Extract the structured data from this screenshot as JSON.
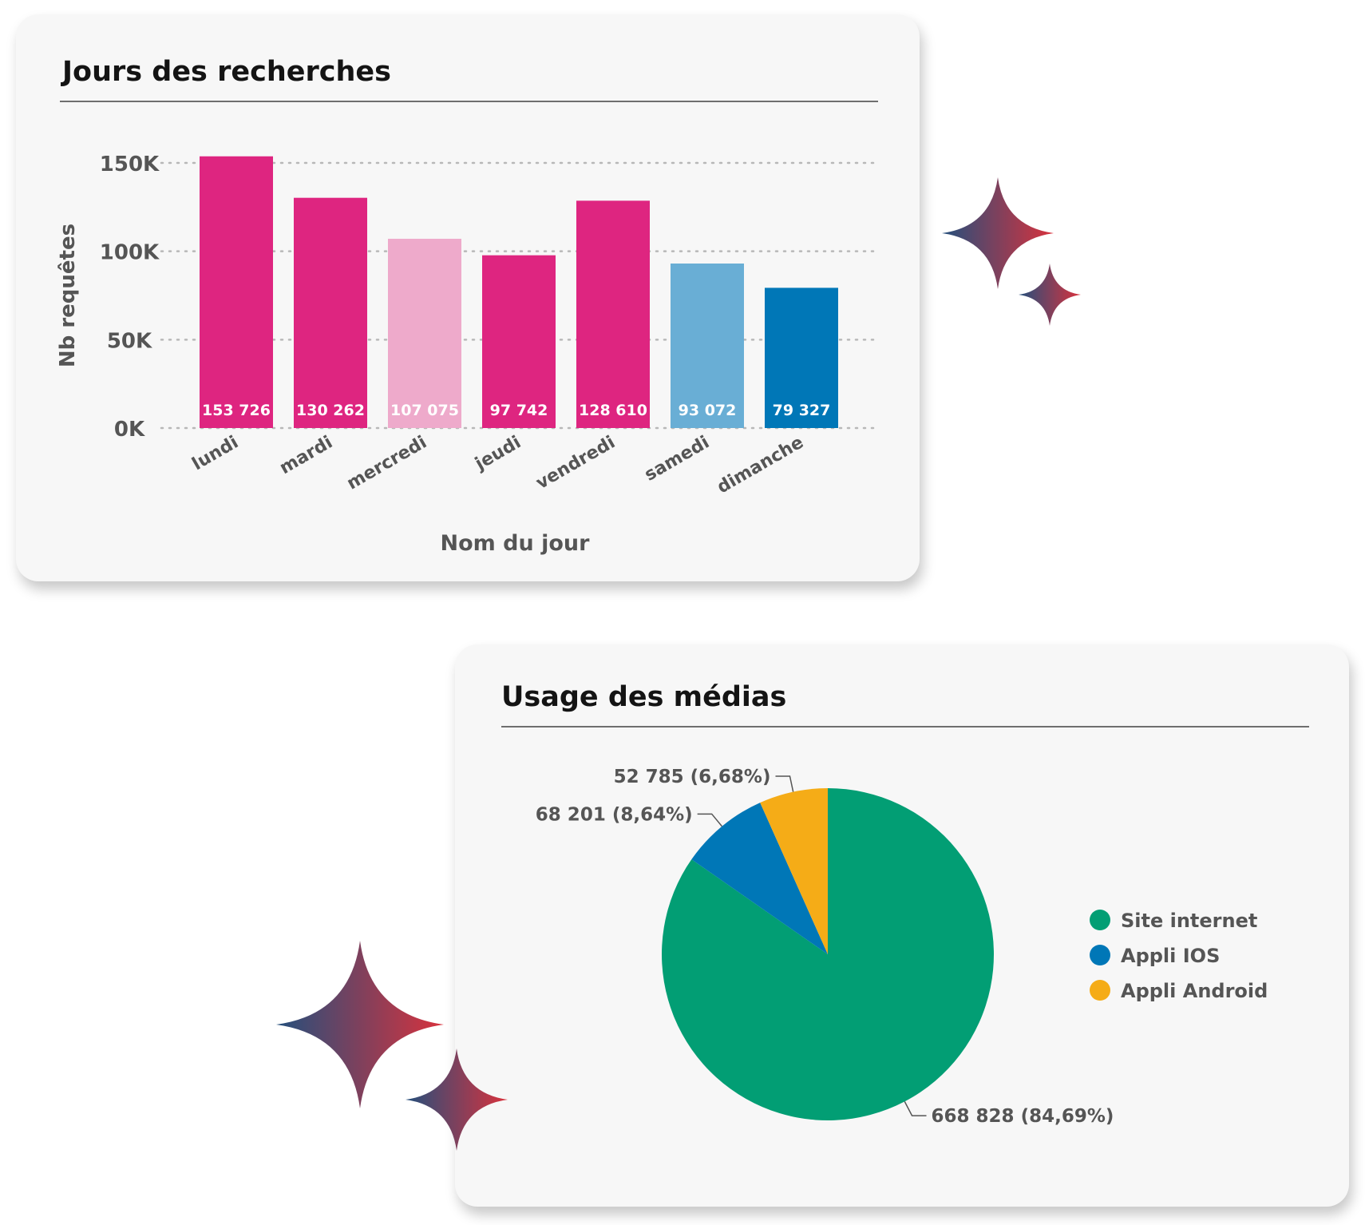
{
  "bar_card": {
    "title": "Jours des recherches"
  },
  "pie_card": {
    "title": "Usage des médias"
  },
  "colors": {
    "magenta": "#de2580",
    "light_pink": "#eeaacb",
    "light_blue": "#69aed5",
    "blue": "#0077b7",
    "green": "#029e74",
    "yellow": "#f5ac17",
    "sparkle_left": "#244f7c",
    "sparkle_right": "#d9323d"
  },
  "chart_data": [
    {
      "type": "bar",
      "title": "Jours des recherches",
      "xlabel": "Nom du jour",
      "ylabel": "Nb requêtes",
      "ylim": [
        0,
        150000
      ],
      "yticks": [
        {
          "value": 0,
          "label": "0K"
        },
        {
          "value": 50000,
          "label": "50K"
        },
        {
          "value": 100000,
          "label": "100K"
        },
        {
          "value": 150000,
          "label": "150K"
        }
      ],
      "grid": true,
      "categories": [
        "lundi",
        "mardi",
        "mercredi",
        "jeudi",
        "vendredi",
        "samedi",
        "dimanche"
      ],
      "values": [
        153726,
        130262,
        107075,
        97742,
        128610,
        93072,
        79327
      ],
      "value_labels": [
        "153 726",
        "130 262",
        "107 075",
        "97 742",
        "128 610",
        "93 072",
        "79 327"
      ],
      "bar_colors": [
        "#de2580",
        "#de2580",
        "#eeaacb",
        "#de2580",
        "#de2580",
        "#69aed5",
        "#0077b7"
      ]
    },
    {
      "type": "pie",
      "title": "Usage des médias",
      "legend": "right",
      "slices": [
        {
          "label": "Site internet",
          "value": 668828,
          "percent": 84.69,
          "text": "668 828 (84,69%)",
          "color": "#029e74"
        },
        {
          "label": "Appli IOS",
          "value": 68201,
          "percent": 8.64,
          "text": "68 201 (8,64%)",
          "color": "#0077b7"
        },
        {
          "label": "Appli Android",
          "value": 52785,
          "percent": 6.68,
          "text": "52 785 (6,68%)",
          "color": "#f5ac17"
        }
      ]
    }
  ]
}
